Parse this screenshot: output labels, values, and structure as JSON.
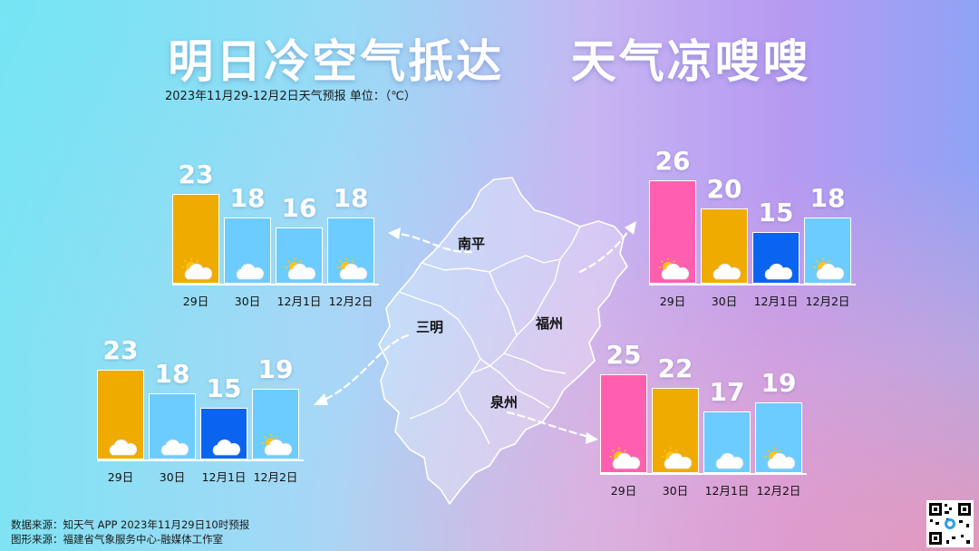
{
  "title": "明日冷空气抵达　 天气凉嗖嗖",
  "subtitle": "2023年11月29-12月2日天气预报 单位：（℃）",
  "source_line1": "数据来源：知天气 APP 2023年11月29日10时预报",
  "source_line2": "图形来源：福建省气象服务中心-融媒体工作室",
  "colors": {
    "hot": "#ff5fae",
    "warm": "#f0ab00",
    "mild": "#6cccff",
    "cold": "#0a64f0"
  },
  "cities": {
    "nanping": "南平",
    "sanming": "三明",
    "fuzhou": "福州",
    "quanzhou": "泉州"
  },
  "chart_data": [
    {
      "type": "bar",
      "name": "南平",
      "categories": [
        "29日",
        "30日",
        "12月1日",
        "12月2日"
      ],
      "values": [
        23,
        18,
        16,
        18
      ],
      "weather": [
        "partly-cloudy",
        "cloudy",
        "partly-cloudy",
        "partly-cloudy"
      ],
      "bar_colors": [
        "#f0ab00",
        "#6cccff",
        "#6cccff",
        "#6cccff"
      ]
    },
    {
      "type": "bar",
      "name": "三明",
      "categories": [
        "29日",
        "30日",
        "12月1日",
        "12月2日"
      ],
      "values": [
        23,
        18,
        15,
        19
      ],
      "weather": [
        "cloudy",
        "cloudy",
        "cloudy",
        "partly-cloudy"
      ],
      "bar_colors": [
        "#f0ab00",
        "#6cccff",
        "#0a64f0",
        "#6cccff"
      ]
    },
    {
      "type": "bar",
      "name": "福州",
      "categories": [
        "29日",
        "30日",
        "12月1日",
        "12月2日"
      ],
      "values": [
        26,
        20,
        15,
        18
      ],
      "weather": [
        "partly-cloudy",
        "cloudy",
        "cloudy",
        "partly-cloudy"
      ],
      "bar_colors": [
        "#ff5fae",
        "#f0ab00",
        "#0a64f0",
        "#6cccff"
      ]
    },
    {
      "type": "bar",
      "name": "泉州",
      "categories": [
        "29日",
        "30日",
        "12月1日",
        "12月2日"
      ],
      "values": [
        25,
        22,
        17,
        19
      ],
      "weather": [
        "partly-cloudy",
        "partly-cloudy",
        "cloudy",
        "partly-cloudy"
      ],
      "bar_colors": [
        "#ff5fae",
        "#f0ab00",
        "#6cccff",
        "#6cccff"
      ]
    }
  ]
}
